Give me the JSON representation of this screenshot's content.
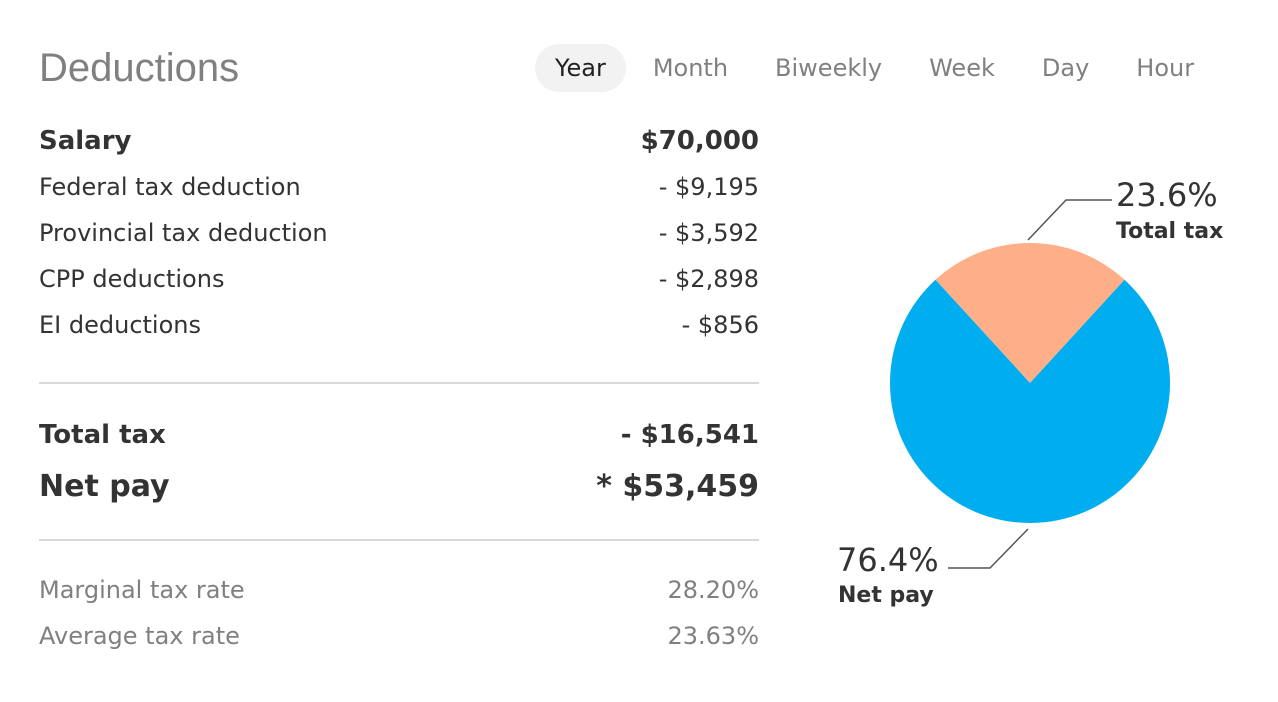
{
  "title": "Deductions",
  "periods": [
    "Year",
    "Month",
    "Biweekly",
    "Week",
    "Day",
    "Hour"
  ],
  "active_period": "Year",
  "salary": {
    "label": "Salary",
    "value": "$70,000"
  },
  "deductions": [
    {
      "label": "Federal tax deduction",
      "value": "- $9,195"
    },
    {
      "label": "Provincial tax deduction",
      "value": "- $3,592"
    },
    {
      "label": "CPP deductions",
      "value": "- $2,898"
    },
    {
      "label": "EI deductions",
      "value": "- $856"
    }
  ],
  "total_tax": {
    "label": "Total tax",
    "value": "- $16,541"
  },
  "net_pay": {
    "label": "Net pay",
    "value": "* $53,459"
  },
  "rates": [
    {
      "label": "Marginal tax rate",
      "value": "28.20%"
    },
    {
      "label": "Average tax rate",
      "value": "23.63%"
    }
  ],
  "colors": {
    "tax_slice": "#ffaf87",
    "net_slice": "#00aeef",
    "leader_line": "#555555"
  },
  "chart_data": {
    "type": "pie",
    "slices": [
      {
        "label": "Total tax",
        "value": 23.6,
        "display": "23.6%"
      },
      {
        "label": "Net pay",
        "value": 76.4,
        "display": "76.4%"
      }
    ]
  }
}
